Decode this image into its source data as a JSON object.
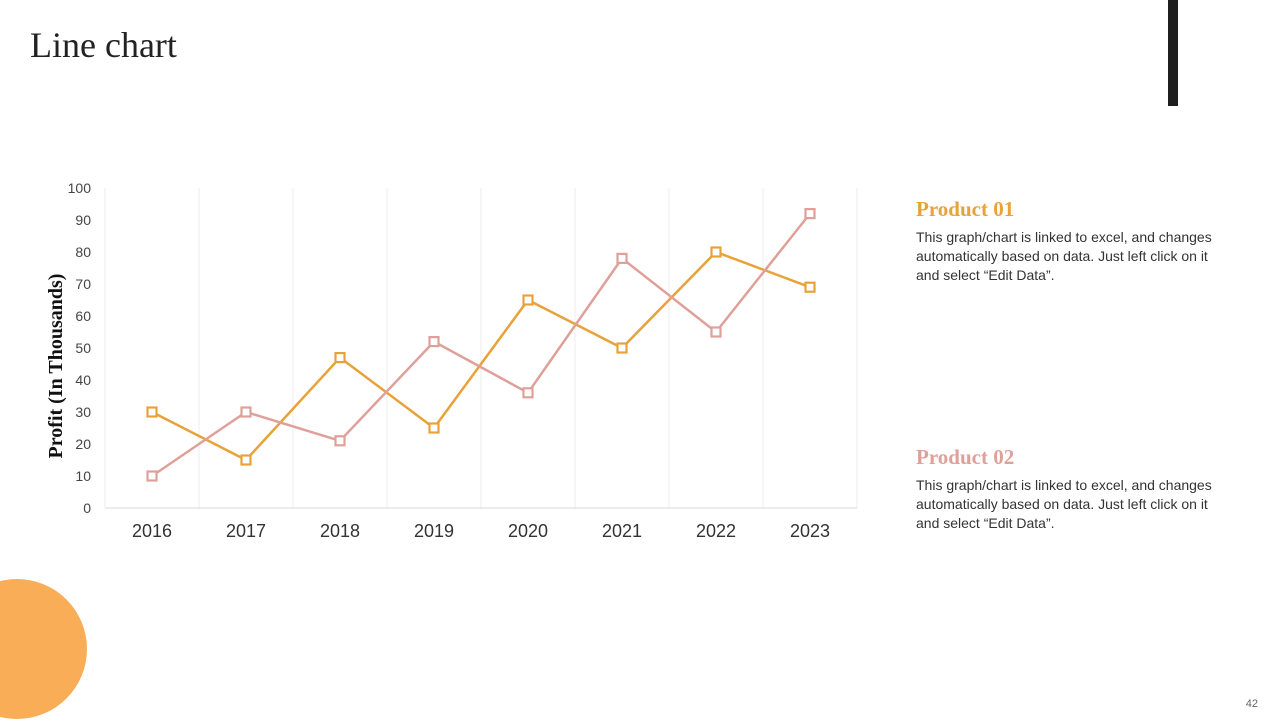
{
  "slide": {
    "title": "Line chart",
    "page_number": "42"
  },
  "colors": {
    "product01": "#e8a23a",
    "product02": "#e0a09a",
    "accent_bar": "#1f1f1f",
    "circle": "#f9ad57"
  },
  "legend": [
    {
      "title": "Product 01",
      "description": "This graph/chart is linked to excel, and changes automatically based on data. Just left click on it and select “Edit Data”."
    },
    {
      "title": "Product 02",
      "description": "This graph/chart is linked to excel, and changes automatically based on data. Just left click on it and select “Edit Data”."
    }
  ],
  "chart_data": {
    "type": "line",
    "title": "",
    "xlabel": "",
    "ylabel": "Profit (In Thousands)",
    "categories": [
      "2016",
      "2017",
      "2018",
      "2019",
      "2020",
      "2021",
      "2022",
      "2023"
    ],
    "ylim": [
      0,
      100
    ],
    "yticks": [
      0,
      10,
      20,
      30,
      40,
      50,
      60,
      70,
      80,
      90,
      100
    ],
    "grid": "vertical",
    "series": [
      {
        "name": "Product 01",
        "values": [
          30,
          15,
          47,
          25,
          65,
          50,
          80,
          69
        ]
      },
      {
        "name": "Product 02",
        "values": [
          10,
          30,
          21,
          52,
          36,
          78,
          55,
          92
        ]
      }
    ]
  }
}
